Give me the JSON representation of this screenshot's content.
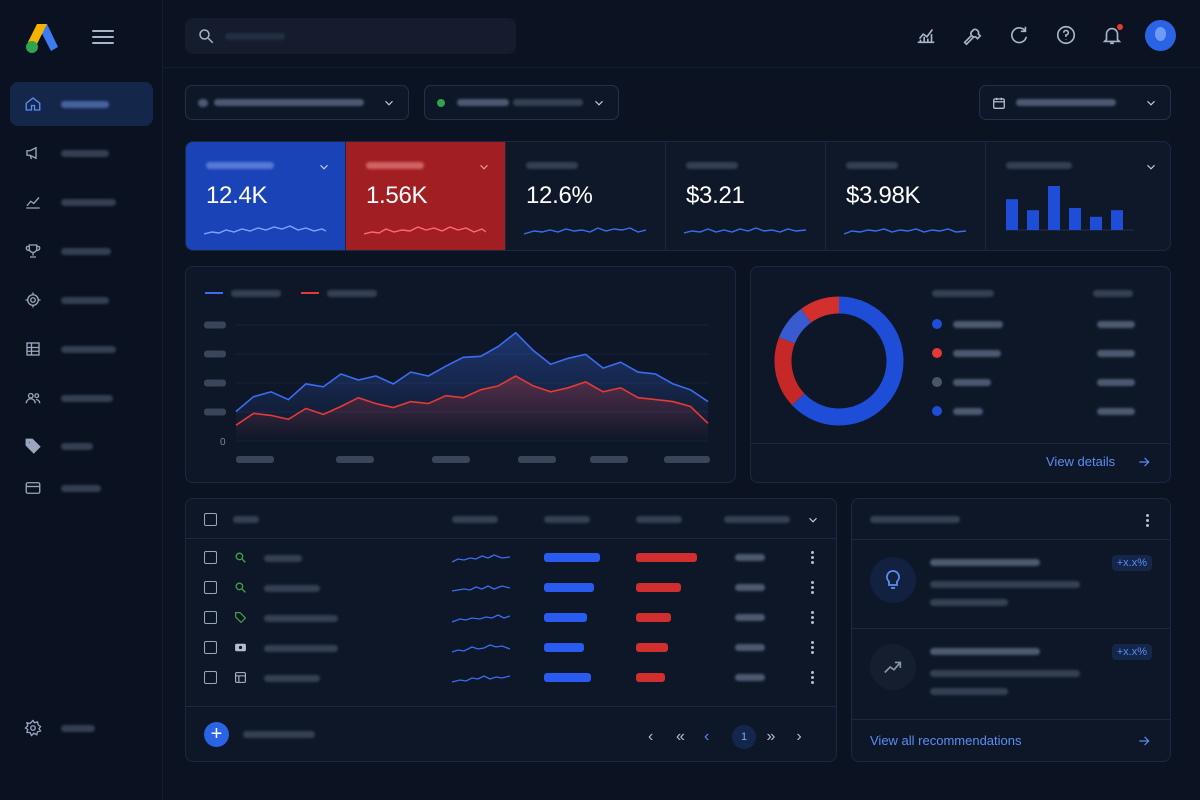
{
  "app": {
    "name": "Google Ads"
  },
  "sidebar": {
    "items": [
      {
        "icon": "home-icon",
        "active": true
      },
      {
        "icon": "megaphone-icon"
      },
      {
        "icon": "insights-chart-icon"
      },
      {
        "icon": "trophy-icon"
      },
      {
        "icon": "target-icon"
      },
      {
        "icon": "table-icon"
      },
      {
        "icon": "people-icon"
      },
      {
        "icon": "tag-icon"
      },
      {
        "icon": "card-icon"
      }
    ],
    "footer_icon": "gear-icon"
  },
  "topbar": {
    "search_placeholder": "",
    "icons": [
      "analytics-icon",
      "tools-icon",
      "refresh-icon",
      "help-icon",
      "bell-icon",
      "avatar"
    ]
  },
  "kpis": [
    {
      "value": "12.4K",
      "style": "blue",
      "has_menu": true
    },
    {
      "value": "1.56K",
      "style": "red",
      "has_menu": true
    },
    {
      "value": "12.6%",
      "style": "plain"
    },
    {
      "value": "$3.21",
      "style": "plain"
    },
    {
      "value": "$3.98K",
      "style": "plain"
    }
  ],
  "kpi_mini_bars": {
    "values": [
      0.7,
      0.45,
      1.0,
      0.5,
      0.3,
      0.45
    ]
  },
  "chart_data": {
    "type": "line",
    "series": [
      {
        "color": "#3a6df0",
        "values": [
          30,
          45,
          50,
          42,
          58,
          55,
          68,
          62,
          66,
          58,
          70,
          66,
          76,
          85,
          86,
          96,
          110,
          92,
          78,
          84,
          88,
          74,
          80,
          70,
          68,
          58,
          52,
          40
        ]
      },
      {
        "color": "#e53935",
        "values": [
          16,
          28,
          26,
          22,
          33,
          27,
          35,
          44,
          38,
          34,
          40,
          38,
          46,
          44,
          52,
          56,
          66,
          56,
          50,
          54,
          60,
          50,
          54,
          44,
          42,
          40,
          35,
          18
        ]
      }
    ],
    "yticks": [
      "0"
    ],
    "ylim": [
      0,
      130
    ]
  },
  "donut": {
    "slices": [
      {
        "value": 63,
        "color": "#1e4ed8"
      },
      {
        "value": 18,
        "color": "#c62828"
      },
      {
        "value": 9,
        "color": "#3a5ad0"
      },
      {
        "value": 10,
        "color": "#d32f2f"
      }
    ],
    "legend_colors": [
      "#1e4ed8",
      "#e53935",
      "#4a5568",
      "#1e4ed8"
    ],
    "link": "View details"
  },
  "table": {
    "rows": [
      {
        "icon": "search-icon",
        "icon_color": "#43a047",
        "blue": 0.9,
        "red": 0.95
      },
      {
        "icon": "search-icon",
        "icon_color": "#43a047",
        "blue": 0.8,
        "red": 0.7
      },
      {
        "icon": "tag-icon",
        "icon_color": "#43a047",
        "blue": 0.7,
        "red": 0.55
      },
      {
        "icon": "video-icon",
        "icon_color": "#b3bdcf",
        "blue": 0.65,
        "red": 0.5
      },
      {
        "icon": "display-icon",
        "icon_color": "#b3bdcf",
        "blue": 0.75,
        "red": 0.45
      }
    ],
    "pagination": {
      "page": "1"
    }
  },
  "recommendations": {
    "items": [
      {
        "icon": "lightbulb-icon",
        "badge": "+x.x%"
      },
      {
        "icon": "trending-up-icon",
        "badge": "+x.x%"
      }
    ],
    "link": "View all recommendations"
  }
}
